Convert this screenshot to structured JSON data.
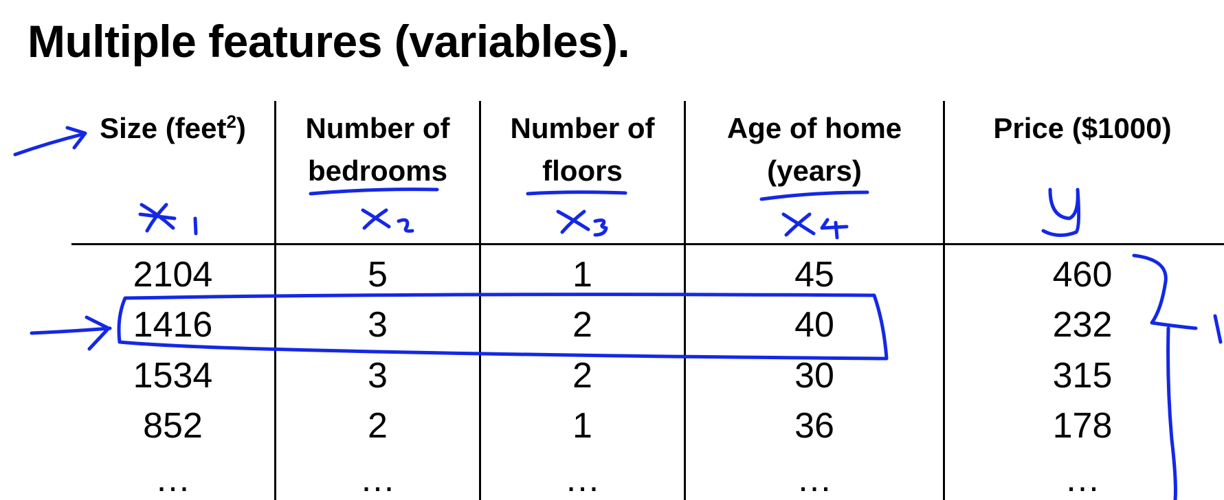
{
  "title": "Multiple features (variables).",
  "columns": [
    {
      "line1": "Size (feet",
      "sup": "2",
      "line1_end": ")",
      "line2": ""
    },
    {
      "line1": "Number of",
      "line2": "bedrooms"
    },
    {
      "line1": "Number of",
      "line2": "floors"
    },
    {
      "line1": "Age of home",
      "line2": "(years)"
    },
    {
      "line1": "Price ($1000)",
      "line2": ""
    }
  ],
  "rows": [
    [
      "2104",
      "5",
      "1",
      "45",
      "460"
    ],
    [
      "1416",
      "3",
      "2",
      "40",
      "232"
    ],
    [
      "1534",
      "3",
      "2",
      "30",
      "315"
    ],
    [
      "852",
      "2",
      "1",
      "36",
      "178"
    ],
    [
      "…",
      "…",
      "…",
      "…",
      "…"
    ]
  ],
  "ink_color": "#1428e6"
}
